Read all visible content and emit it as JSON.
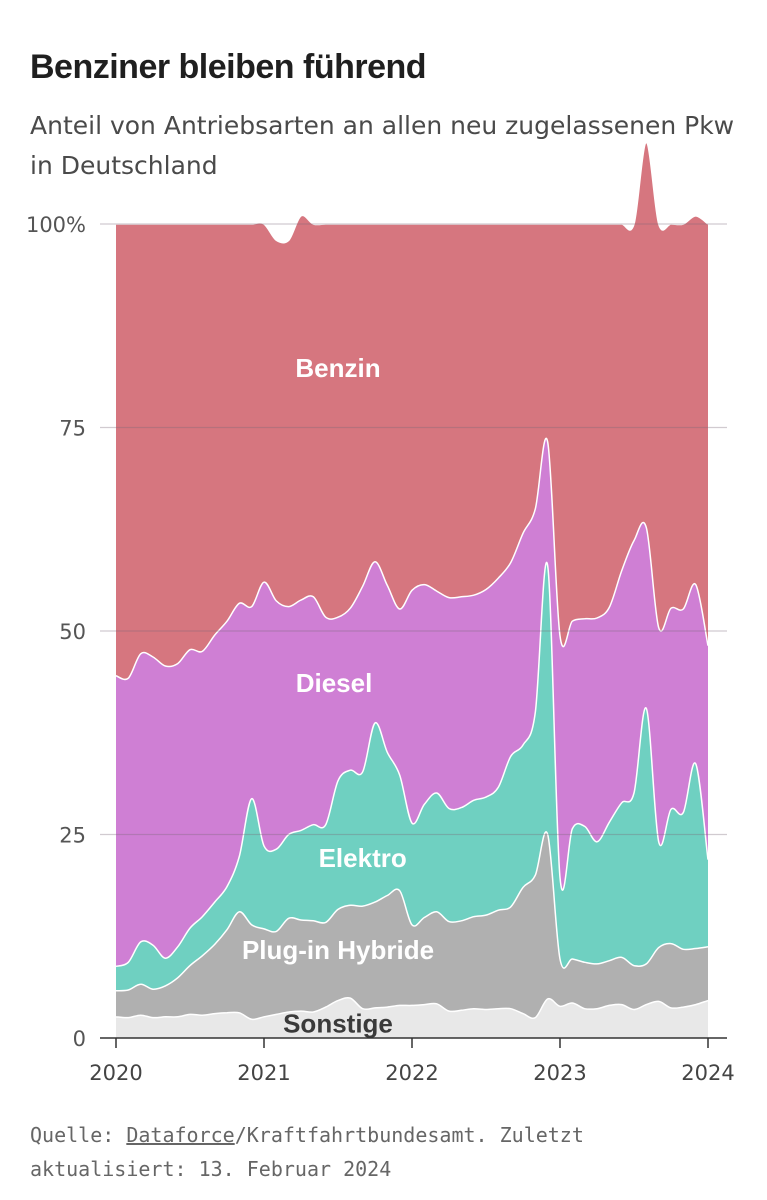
{
  "title": "Benziner bleiben führend",
  "subtitle": "Anteil von Antriebsarten an allen neu zugelassenen Pkw in Deutschland",
  "source": {
    "prefix": "Quelle: ",
    "link": "Dataforce",
    "suffix": "/Kraftfahrtbundesamt. Zuletzt aktualisiert: 13. Februar 2024"
  },
  "chart_data": {
    "type": "area",
    "stacked": true,
    "x": [
      "2020-01",
      "2020-02",
      "2020-03",
      "2020-04",
      "2020-05",
      "2020-06",
      "2020-07",
      "2020-08",
      "2020-09",
      "2020-10",
      "2020-11",
      "2020-12",
      "2021-01",
      "2021-02",
      "2021-03",
      "2021-04",
      "2021-05",
      "2021-06",
      "2021-07",
      "2021-08",
      "2021-09",
      "2021-10",
      "2021-11",
      "2021-12",
      "2022-01",
      "2022-02",
      "2022-03",
      "2022-04",
      "2022-05",
      "2022-06",
      "2022-07",
      "2022-08",
      "2022-09",
      "2022-10",
      "2022-11",
      "2022-12",
      "2023-01",
      "2023-02",
      "2023-03",
      "2023-04",
      "2023-05",
      "2023-06",
      "2023-07",
      "2023-08",
      "2023-09",
      "2023-10",
      "2023-11",
      "2023-12",
      "2024-01"
    ],
    "xtick_labels": [
      "2020",
      "2021",
      "2022",
      "2023",
      "2024"
    ],
    "xtick_values": [
      "2020-01",
      "2021-01",
      "2022-01",
      "2023-01",
      "2024-01"
    ],
    "ytick_labels": [
      "0",
      "25",
      "50",
      "75",
      "100%"
    ],
    "ytick_values": [
      0,
      25,
      50,
      75,
      100
    ],
    "ylim": [
      0,
      100
    ],
    "grid": true,
    "series": [
      {
        "name": "Sonstige",
        "color": "#e8e8e8",
        "values": [
          2.6,
          2.5,
          2.8,
          2.5,
          2.6,
          2.6,
          2.9,
          2.8,
          3.0,
          3.1,
          3.1,
          2.3,
          2.6,
          2.9,
          3.2,
          3.3,
          3.2,
          3.8,
          4.6,
          4.9,
          3.6,
          3.7,
          3.8,
          4.0,
          4.0,
          4.1,
          4.2,
          3.3,
          3.4,
          3.6,
          3.5,
          3.6,
          3.6,
          3.0,
          2.5,
          4.8,
          3.9,
          4.3,
          3.6,
          3.6,
          4.0,
          4.1,
          3.5,
          4.1,
          4.5,
          3.7,
          3.8,
          4.1,
          4.6
        ]
      },
      {
        "name": "Plug-in Hybride",
        "color": "#b0b0b0",
        "values": [
          3.2,
          3.4,
          3.8,
          3.5,
          3.8,
          4.8,
          6.0,
          7.3,
          8.5,
          10.2,
          12.4,
          11.6,
          10.8,
          10.2,
          11.5,
          11.2,
          11.2,
          10.4,
          11.2,
          11.4,
          12.6,
          13.0,
          13.7,
          14.1,
          9.9,
          10.7,
          11.3,
          11.0,
          11.0,
          11.3,
          11.6,
          12.1,
          12.5,
          15.5,
          17.5,
          20.2,
          5.8,
          5.4,
          5.7,
          5.5,
          5.5,
          5.8,
          5.4,
          5.0,
          6.6,
          7.9,
          7.1,
          6.9,
          6.6
        ]
      },
      {
        "name": "Elektro",
        "color": "#6fd0c1",
        "values": [
          3.0,
          3.4,
          5.2,
          5.4,
          3.4,
          3.8,
          4.6,
          4.8,
          5.2,
          5.3,
          6.8,
          15.5,
          10.2,
          10.1,
          10.3,
          11.0,
          11.8,
          12.0,
          15.8,
          16.6,
          16.5,
          22.0,
          17.6,
          14.2,
          12.5,
          13.9,
          14.6,
          13.9,
          13.9,
          14.3,
          14.5,
          15.1,
          18.5,
          17.5,
          20.0,
          33.0,
          10.0,
          16.0,
          16.7,
          15.0,
          17.0,
          19.0,
          21.2,
          31.4,
          13.0,
          16.5,
          16.8,
          22.7,
          10.7
        ]
      },
      {
        "name": "Diesel",
        "color": "#cf7fd4",
        "values": [
          35.7,
          34.9,
          35.4,
          35.4,
          35.9,
          34.8,
          34.2,
          32.6,
          32.8,
          32.6,
          31.1,
          23.6,
          32.4,
          30.5,
          28.0,
          28.3,
          28.0,
          25.5,
          20.1,
          19.9,
          22.8,
          19.8,
          20.5,
          20.4,
          28.6,
          27.0,
          24.8,
          25.9,
          25.9,
          25.2,
          25.5,
          25.7,
          23.8,
          26.0,
          25.0,
          15.2,
          29.7,
          25.5,
          25.5,
          27.5,
          26.4,
          28.5,
          31.0,
          22.2,
          26.3,
          24.7,
          25.0,
          22.0,
          26.3
        ]
      },
      {
        "name": "Benzin",
        "color": "#d6767f",
        "values": [
          55.5,
          55.8,
          52.8,
          53.2,
          54.3,
          54.0,
          52.3,
          52.5,
          50.5,
          48.8,
          46.6,
          47.0,
          44.0,
          44.3,
          45.0,
          47.2,
          45.8,
          48.3,
          48.3,
          47.2,
          44.5,
          41.5,
          44.4,
          47.3,
          45.0,
          44.3,
          45.1,
          45.9,
          45.8,
          45.6,
          44.9,
          43.5,
          41.6,
          38.0,
          35.0,
          26.8,
          50.6,
          48.8,
          48.5,
          48.4,
          47.1,
          42.6,
          38.9,
          47.3,
          49.6,
          47.2,
          47.3,
          45.3,
          51.8
        ]
      }
    ],
    "labels": [
      {
        "series": "Benzin",
        "text": "Benzin"
      },
      {
        "series": "Diesel",
        "text": "Diesel"
      },
      {
        "series": "Elektro",
        "text": "Elektro"
      },
      {
        "series": "Plug-in Hybride",
        "text": "Plug-in Hybride"
      },
      {
        "series": "Sonstige",
        "text": "Sonstige"
      }
    ]
  }
}
